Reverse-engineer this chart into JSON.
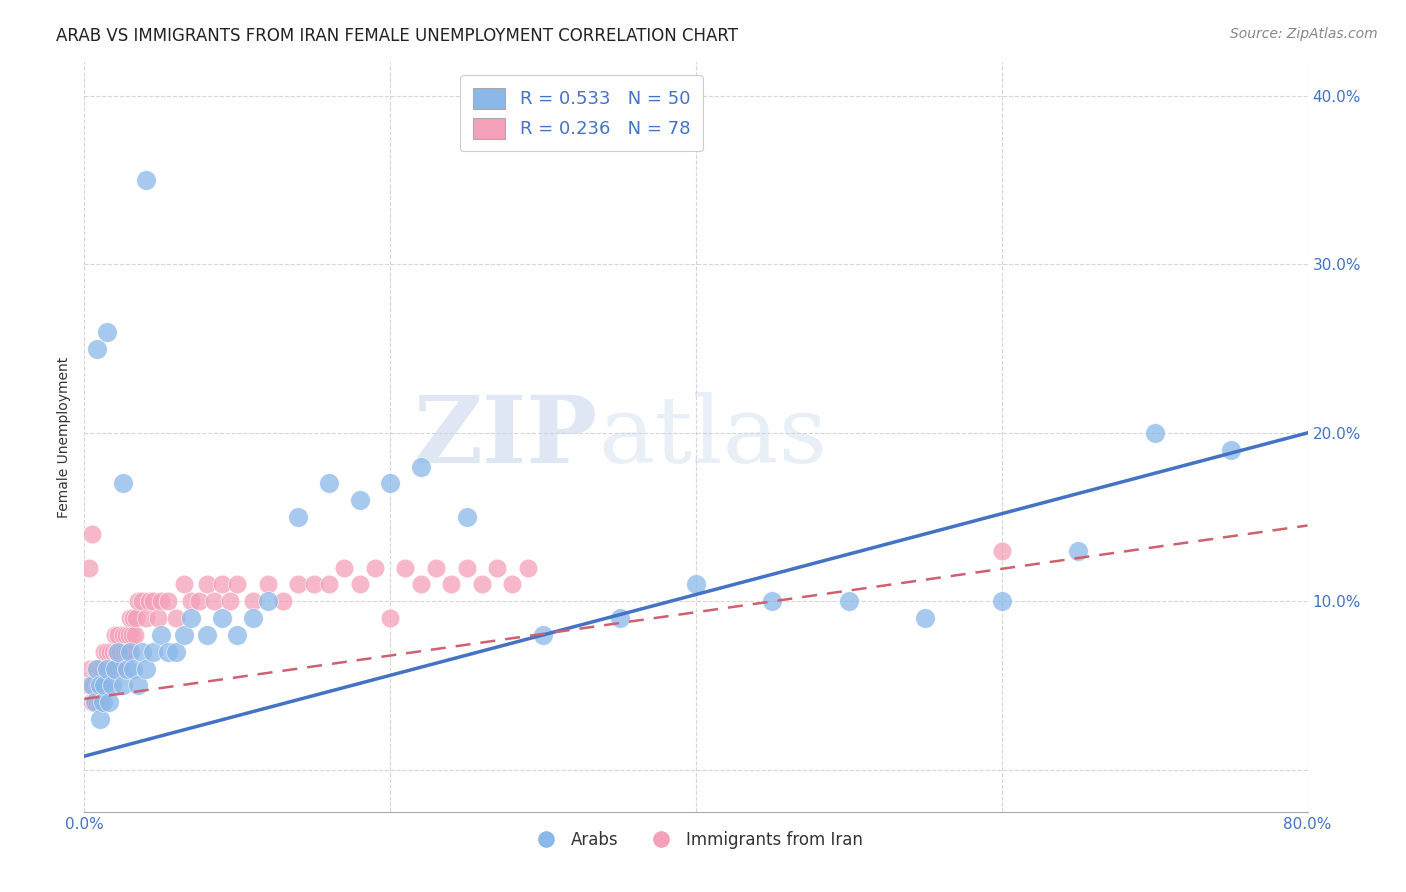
{
  "title": "ARAB VS IMMIGRANTS FROM IRAN FEMALE UNEMPLOYMENT CORRELATION CHART",
  "source": "Source: ZipAtlas.com",
  "ylabel": "Female Unemployment",
  "xlim": [
    0.0,
    0.8
  ],
  "ylim": [
    -0.025,
    0.42
  ],
  "watermark_zip": "ZIP",
  "watermark_atlas": "atlas",
  "legend_entry_arab": "R = 0.533   N = 50",
  "legend_entry_iran": "R = 0.236   N = 78",
  "arab_color": "#8ab8e8",
  "iran_color": "#f4a0b8",
  "arab_line_color": "#4472c4",
  "iran_line_color": "#d06070",
  "arab_line_x": [
    0.0,
    0.8
  ],
  "arab_line_y": [
    0.008,
    0.2
  ],
  "iran_line_x": [
    0.0,
    0.8
  ],
  "iran_line_y": [
    0.042,
    0.145
  ],
  "background_color": "#ffffff",
  "grid_color": "#cccccc",
  "title_fontsize": 12,
  "axis_label_fontsize": 10,
  "tick_fontsize": 11,
  "source_fontsize": 10,
  "arab_scatter_x": [
    0.005,
    0.007,
    0.008,
    0.01,
    0.01,
    0.012,
    0.013,
    0.015,
    0.016,
    0.018,
    0.02,
    0.022,
    0.025,
    0.028,
    0.03,
    0.032,
    0.035,
    0.038,
    0.04,
    0.045,
    0.05,
    0.055,
    0.06,
    0.065,
    0.07,
    0.08,
    0.09,
    0.1,
    0.11,
    0.12,
    0.14,
    0.16,
    0.18,
    0.2,
    0.22,
    0.25,
    0.3,
    0.35,
    0.4,
    0.45,
    0.5,
    0.55,
    0.6,
    0.65,
    0.7,
    0.75,
    0.008,
    0.015,
    0.025,
    0.04
  ],
  "arab_scatter_y": [
    0.05,
    0.04,
    0.06,
    0.05,
    0.03,
    0.04,
    0.05,
    0.06,
    0.04,
    0.05,
    0.06,
    0.07,
    0.05,
    0.06,
    0.07,
    0.06,
    0.05,
    0.07,
    0.06,
    0.07,
    0.08,
    0.07,
    0.07,
    0.08,
    0.09,
    0.08,
    0.09,
    0.08,
    0.09,
    0.1,
    0.15,
    0.17,
    0.16,
    0.17,
    0.18,
    0.15,
    0.08,
    0.09,
    0.11,
    0.1,
    0.1,
    0.09,
    0.1,
    0.13,
    0.2,
    0.19,
    0.25,
    0.26,
    0.17,
    0.35
  ],
  "iran_scatter_x": [
    0.003,
    0.004,
    0.005,
    0.005,
    0.006,
    0.007,
    0.007,
    0.008,
    0.008,
    0.009,
    0.01,
    0.01,
    0.011,
    0.012,
    0.012,
    0.013,
    0.014,
    0.015,
    0.015,
    0.016,
    0.017,
    0.018,
    0.019,
    0.02,
    0.02,
    0.021,
    0.022,
    0.023,
    0.024,
    0.025,
    0.026,
    0.027,
    0.028,
    0.029,
    0.03,
    0.031,
    0.032,
    0.033,
    0.034,
    0.035,
    0.038,
    0.04,
    0.042,
    0.045,
    0.048,
    0.05,
    0.055,
    0.06,
    0.065,
    0.07,
    0.075,
    0.08,
    0.085,
    0.09,
    0.095,
    0.1,
    0.11,
    0.12,
    0.13,
    0.14,
    0.15,
    0.16,
    0.17,
    0.18,
    0.19,
    0.2,
    0.21,
    0.22,
    0.23,
    0.24,
    0.25,
    0.26,
    0.27,
    0.28,
    0.29,
    0.6,
    0.003,
    0.005
  ],
  "iran_scatter_y": [
    0.05,
    0.06,
    0.05,
    0.04,
    0.05,
    0.04,
    0.06,
    0.05,
    0.04,
    0.05,
    0.06,
    0.04,
    0.05,
    0.06,
    0.05,
    0.07,
    0.06,
    0.05,
    0.07,
    0.06,
    0.07,
    0.06,
    0.07,
    0.08,
    0.06,
    0.07,
    0.08,
    0.07,
    0.06,
    0.08,
    0.07,
    0.08,
    0.07,
    0.08,
    0.09,
    0.08,
    0.09,
    0.08,
    0.09,
    0.1,
    0.1,
    0.09,
    0.1,
    0.1,
    0.09,
    0.1,
    0.1,
    0.09,
    0.11,
    0.1,
    0.1,
    0.11,
    0.1,
    0.11,
    0.1,
    0.11,
    0.1,
    0.11,
    0.1,
    0.11,
    0.11,
    0.11,
    0.12,
    0.11,
    0.12,
    0.09,
    0.12,
    0.11,
    0.12,
    0.11,
    0.12,
    0.11,
    0.12,
    0.11,
    0.12,
    0.13,
    0.12,
    0.14
  ]
}
